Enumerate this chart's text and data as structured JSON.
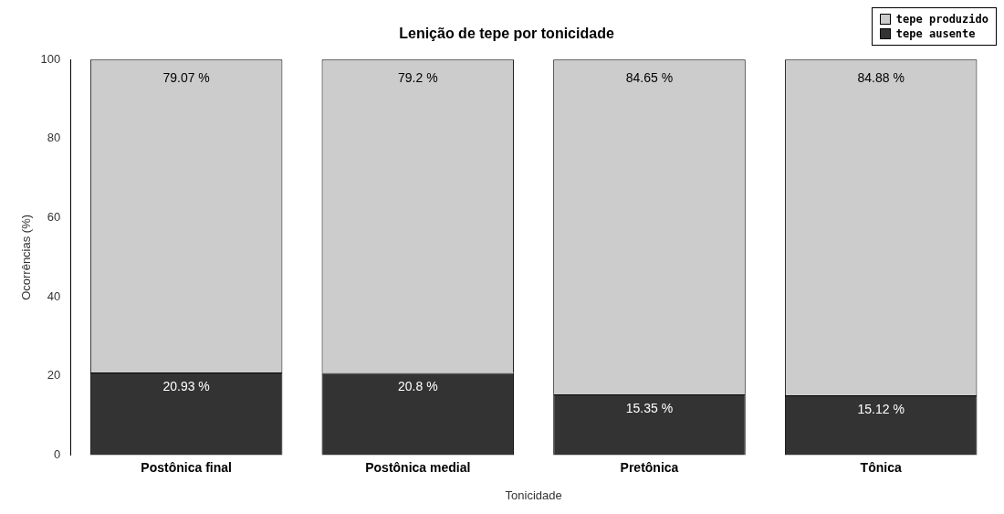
{
  "chart_data": {
    "type": "bar",
    "title": "Lenição de tepe por tonicidade",
    "xlabel": "Tonicidade",
    "ylabel": "Ocorrências (%)",
    "categories": [
      "Postônica final",
      "Postônica medial",
      "Pretônica",
      "Tônica"
    ],
    "stacked": true,
    "ylim": [
      0,
      100
    ],
    "yticks": [
      0,
      20,
      40,
      60,
      80,
      100
    ],
    "grid": false,
    "legend": "top right",
    "series": [
      {
        "name": "tepe ausente",
        "color": "#333333",
        "values": [
          20.93,
          20.8,
          15.35,
          15.12
        ],
        "value_labels": [
          "20.93 %",
          "20.8 %",
          "15.35 %",
          "15.12 %"
        ]
      },
      {
        "name": "tepe produzido",
        "color": "#cccccc",
        "values": [
          79.07,
          79.2,
          84.65,
          84.88
        ],
        "value_labels": [
          "79.07 %",
          "79.2 %",
          "84.65 %",
          "84.88 %"
        ]
      }
    ]
  }
}
